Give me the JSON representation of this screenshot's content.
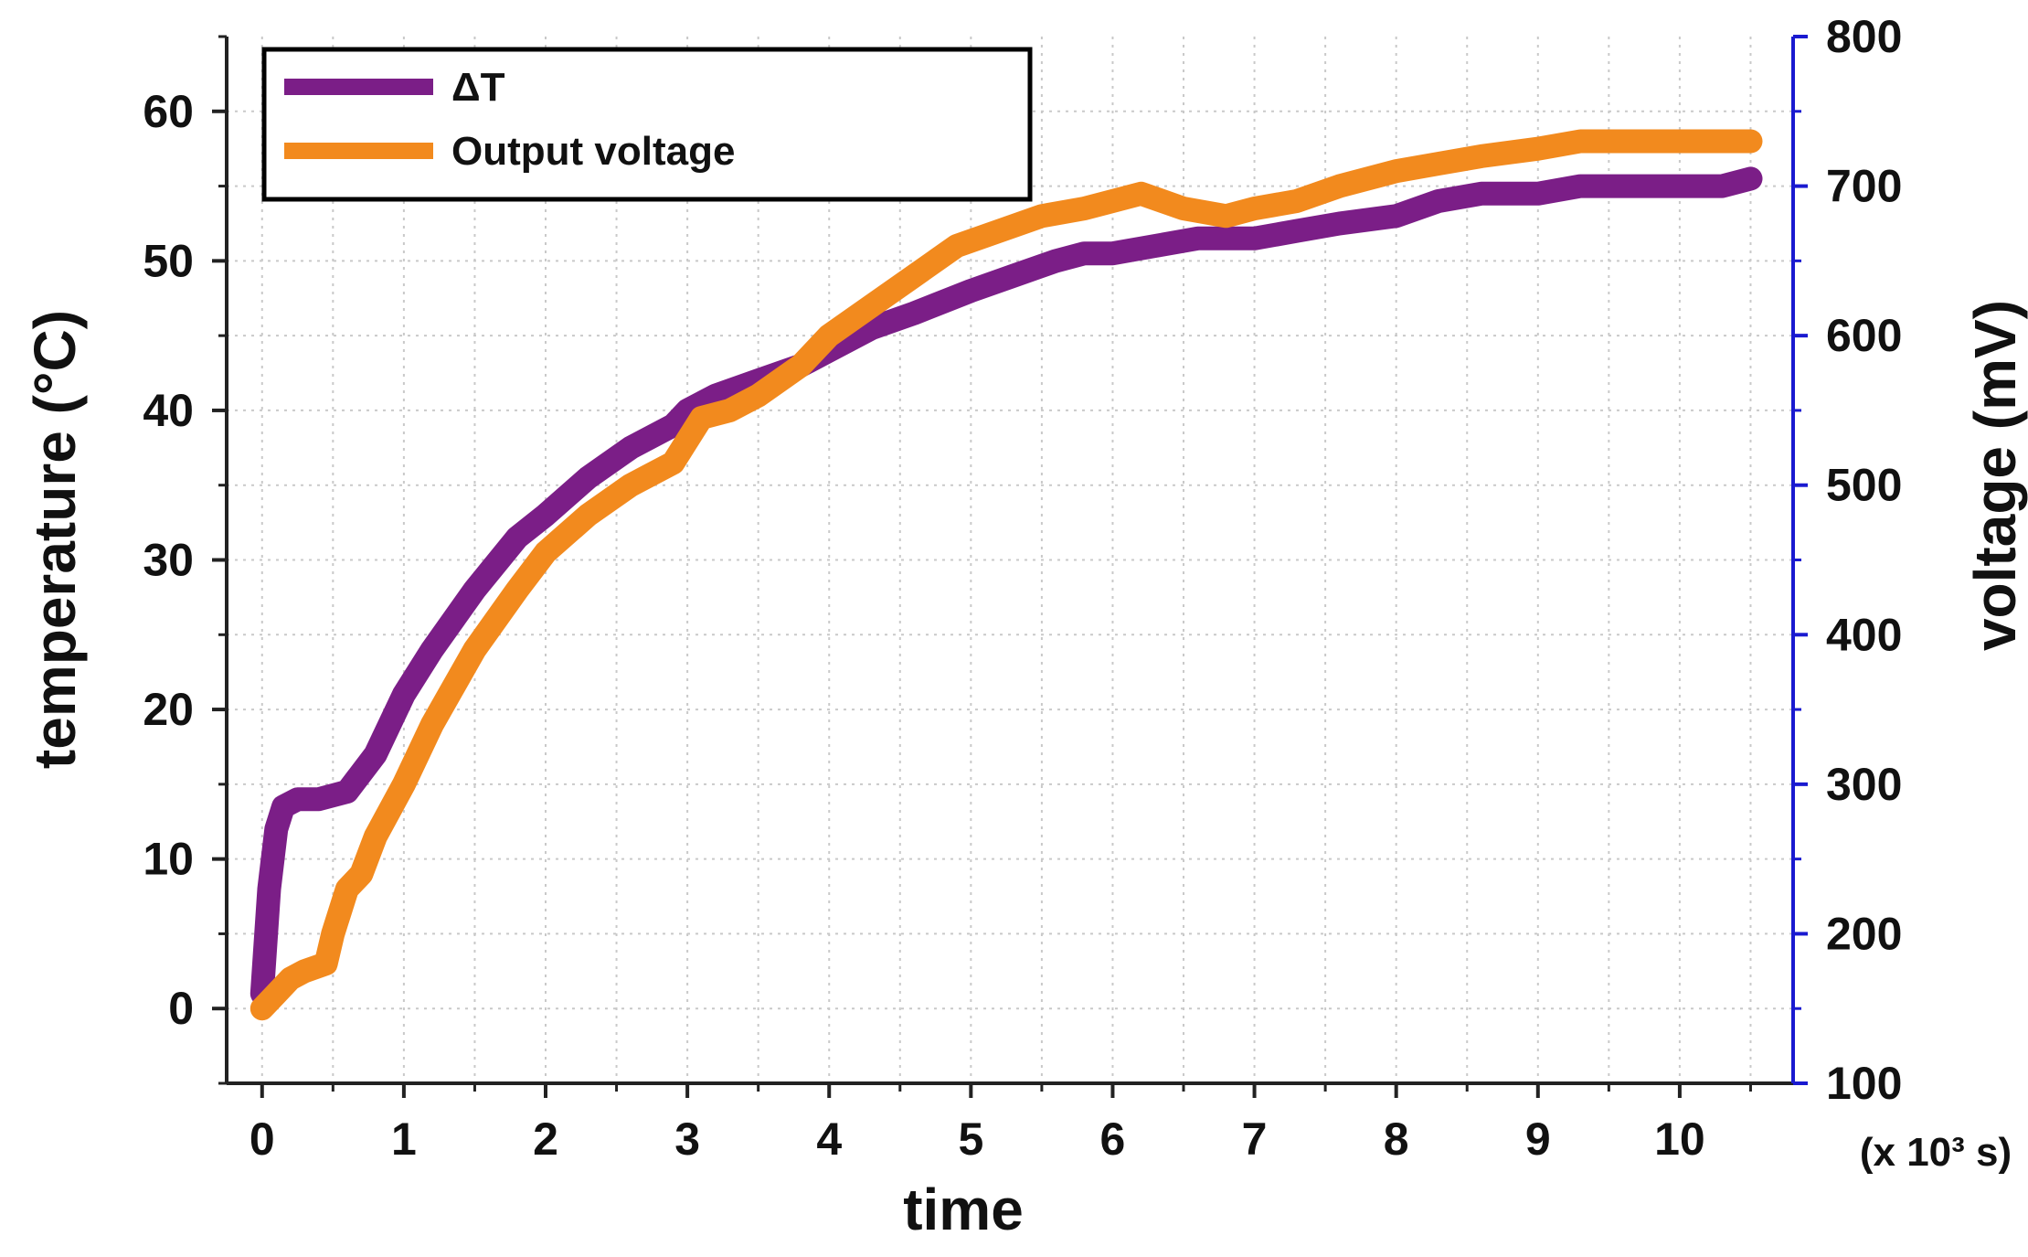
{
  "chart_data": {
    "type": "line",
    "title": "",
    "xlabel": "time",
    "x_unit": "(x 10³ s)",
    "ylabel_left": "temperature (°C)",
    "ylabel_right": "voltage (mV)",
    "xlim": [
      -0.25,
      10.8
    ],
    "ylim_left": [
      -5,
      65
    ],
    "ylim_right": [
      100,
      800
    ],
    "x_ticks": [
      0,
      1,
      2,
      3,
      4,
      5,
      6,
      7,
      8,
      9,
      10
    ],
    "x_tick_labels": [
      "0",
      "1",
      "2",
      "3",
      "4",
      "5",
      "6",
      "7",
      "8",
      "9",
      "10"
    ],
    "y_left_ticks": [
      0,
      10,
      20,
      30,
      40,
      50,
      60
    ],
    "y_left_tick_labels": [
      "0",
      "10",
      "20",
      "30",
      "40",
      "50",
      "60"
    ],
    "y_right_ticks": [
      100,
      200,
      300,
      400,
      500,
      600,
      700,
      800
    ],
    "y_right_tick_labels": [
      "100",
      "200",
      "300",
      "400",
      "500",
      "600",
      "700",
      "800"
    ],
    "grid": true,
    "legend_position": "top-left",
    "series": [
      {
        "name": "ΔT",
        "axis": "left",
        "color": "#7B1E87",
        "x": [
          0,
          0.05,
          0.1,
          0.15,
          0.25,
          0.4,
          0.6,
          0.8,
          1.0,
          1.2,
          1.5,
          1.8,
          2.0,
          2.3,
          2.6,
          2.9,
          3.0,
          3.2,
          3.5,
          3.8,
          4.0,
          4.3,
          4.6,
          5.0,
          5.3,
          5.6,
          5.8,
          6.0,
          6.3,
          6.6,
          7.0,
          7.3,
          7.6,
          8.0,
          8.3,
          8.6,
          9.0,
          9.3,
          9.6,
          10.0,
          10.3,
          10.5
        ],
        "y": [
          1,
          8,
          12,
          13.5,
          14,
          14,
          14.5,
          17,
          21,
          24,
          28,
          31.5,
          33,
          35.5,
          37.5,
          39,
          40,
          41,
          42,
          43,
          44,
          45.5,
          46.5,
          48,
          49,
          50,
          50.5,
          50.5,
          51,
          51.5,
          51.5,
          52,
          52.5,
          53,
          54,
          54.5,
          54.5,
          55,
          55,
          55,
          55,
          55.5
        ]
      },
      {
        "name": "Output voltage",
        "axis": "right",
        "color": "#F28A1E",
        "x": [
          0,
          0.1,
          0.2,
          0.3,
          0.45,
          0.5,
          0.6,
          0.7,
          0.8,
          1.0,
          1.2,
          1.5,
          1.8,
          2.0,
          2.3,
          2.6,
          2.9,
          3.0,
          3.1,
          3.3,
          3.5,
          3.8,
          4.0,
          4.3,
          4.6,
          4.9,
          5.2,
          5.5,
          5.8,
          6.0,
          6.2,
          6.5,
          6.8,
          7.0,
          7.3,
          7.6,
          8.0,
          8.3,
          8.6,
          9.0,
          9.3,
          9.6,
          10.0,
          10.3,
          10.5
        ],
        "y": [
          150,
          160,
          170,
          175,
          180,
          200,
          230,
          240,
          265,
          300,
          340,
          390,
          430,
          455,
          480,
          500,
          515,
          530,
          545,
          550,
          560,
          580,
          600,
          620,
          640,
          660,
          670,
          680,
          685,
          690,
          695,
          685,
          680,
          685,
          690,
          700,
          710,
          715,
          720,
          725,
          730,
          730,
          730,
          730,
          730
        ]
      }
    ]
  }
}
